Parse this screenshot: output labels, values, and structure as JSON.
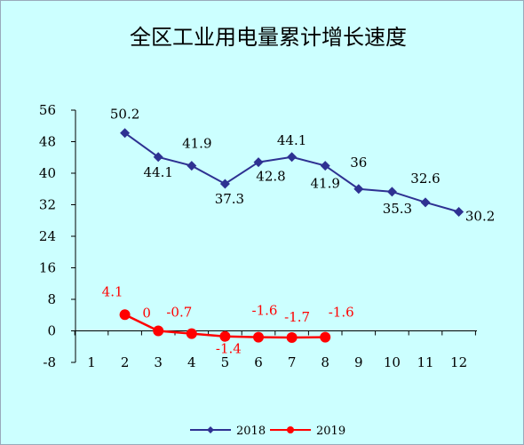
{
  "chart_data": {
    "type": "line",
    "title": "全区工业用电量累计增长速度",
    "xlabel": "",
    "ylabel": "",
    "x": [
      1,
      2,
      3,
      4,
      5,
      6,
      7,
      8,
      9,
      10,
      11,
      12
    ],
    "x_tick_labels": [
      "1",
      "2",
      "3",
      "4",
      "5",
      "6",
      "7",
      "8",
      "9",
      "10",
      "11",
      "12"
    ],
    "ylim": [
      -8,
      56
    ],
    "y_ticks": [
      -8,
      0,
      8,
      16,
      24,
      32,
      40,
      48,
      56
    ],
    "y_tick_labels": [
      "-8",
      "0",
      "8",
      "16",
      "24",
      "32",
      "40",
      "48",
      "56"
    ],
    "grid": false,
    "legend_position": "bottom",
    "series": [
      {
        "name": "2018",
        "color": "#2e3192",
        "marker": "diamond",
        "x": [
          2,
          3,
          4,
          5,
          6,
          7,
          8,
          9,
          10,
          11,
          12
        ],
        "values": [
          50.2,
          44.1,
          41.9,
          37.3,
          42.8,
          44.1,
          41.9,
          36,
          35.3,
          32.6,
          30.2
        ],
        "labels": [
          "50.2",
          "44.1",
          "41.9",
          "37.3",
          "42.8",
          "44.1",
          "41.9",
          "36",
          "35.3",
          "32.6",
          "30.2"
        ]
      },
      {
        "name": "2019",
        "color": "#ff0000",
        "marker": "circle",
        "x": [
          2,
          3,
          4,
          5,
          6,
          7,
          8
        ],
        "values": [
          4.1,
          0,
          -0.7,
          -1.4,
          -1.6,
          -1.7,
          -1.6
        ],
        "labels": [
          "4.1",
          "0",
          "-0.7",
          "-1.4",
          "-1.6",
          "-1.7",
          "-1.6"
        ]
      }
    ]
  }
}
